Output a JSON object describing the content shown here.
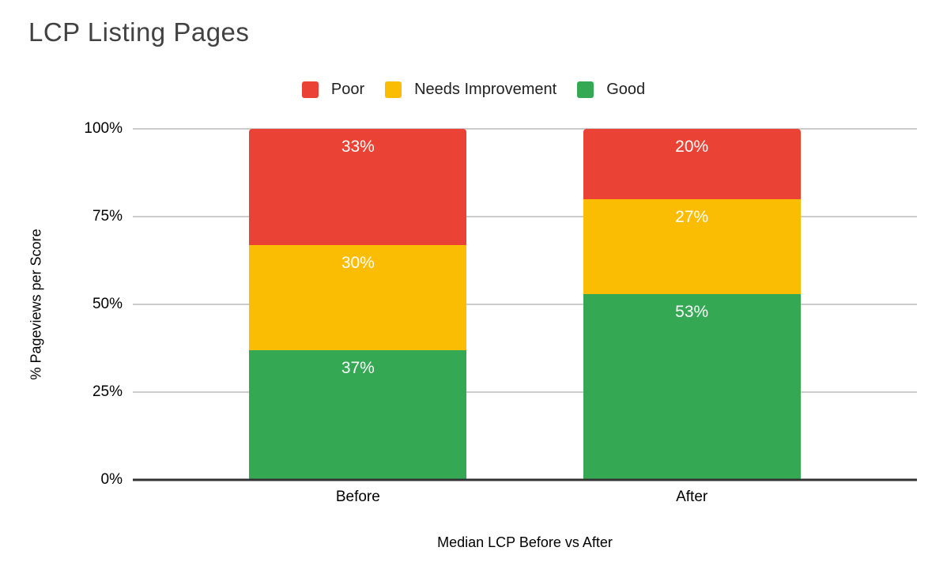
{
  "page": {
    "background": "#ffffff"
  },
  "chart": {
    "title": "LCP Listing Pages",
    "y_axis_title": "% Pageviews per Score",
    "x_axis_title": "Median LCP Before vs After"
  },
  "chart_data": {
    "type": "bar",
    "stacked": true,
    "orientation": "vertical",
    "title": "LCP Listing Pages",
    "xlabel": "Median LCP Before vs After",
    "ylabel": "% Pageviews per Score",
    "categories": [
      "Before",
      "After"
    ],
    "series": [
      {
        "name": "Poor",
        "color": "#EA4335",
        "values": [
          33,
          20
        ]
      },
      {
        "name": "Needs Improvement",
        "color": "#FBBC04",
        "values": [
          30,
          27
        ]
      },
      {
        "name": "Good",
        "color": "#34A853",
        "values": [
          37,
          53
        ]
      }
    ],
    "segment_label_suffix": "%",
    "yticks": [
      "0%",
      "25%",
      "50%",
      "75%",
      "100%"
    ],
    "ylim": [
      0,
      100
    ],
    "grid": true,
    "legend_position": "top",
    "legend": [
      "Poor",
      "Needs Improvement",
      "Good"
    ]
  },
  "colors": {
    "gridline": "#cccccc",
    "axis_line": "#333333",
    "bar_label": "#ffffff",
    "title_text": "#424242",
    "axis_text": "#000000"
  }
}
